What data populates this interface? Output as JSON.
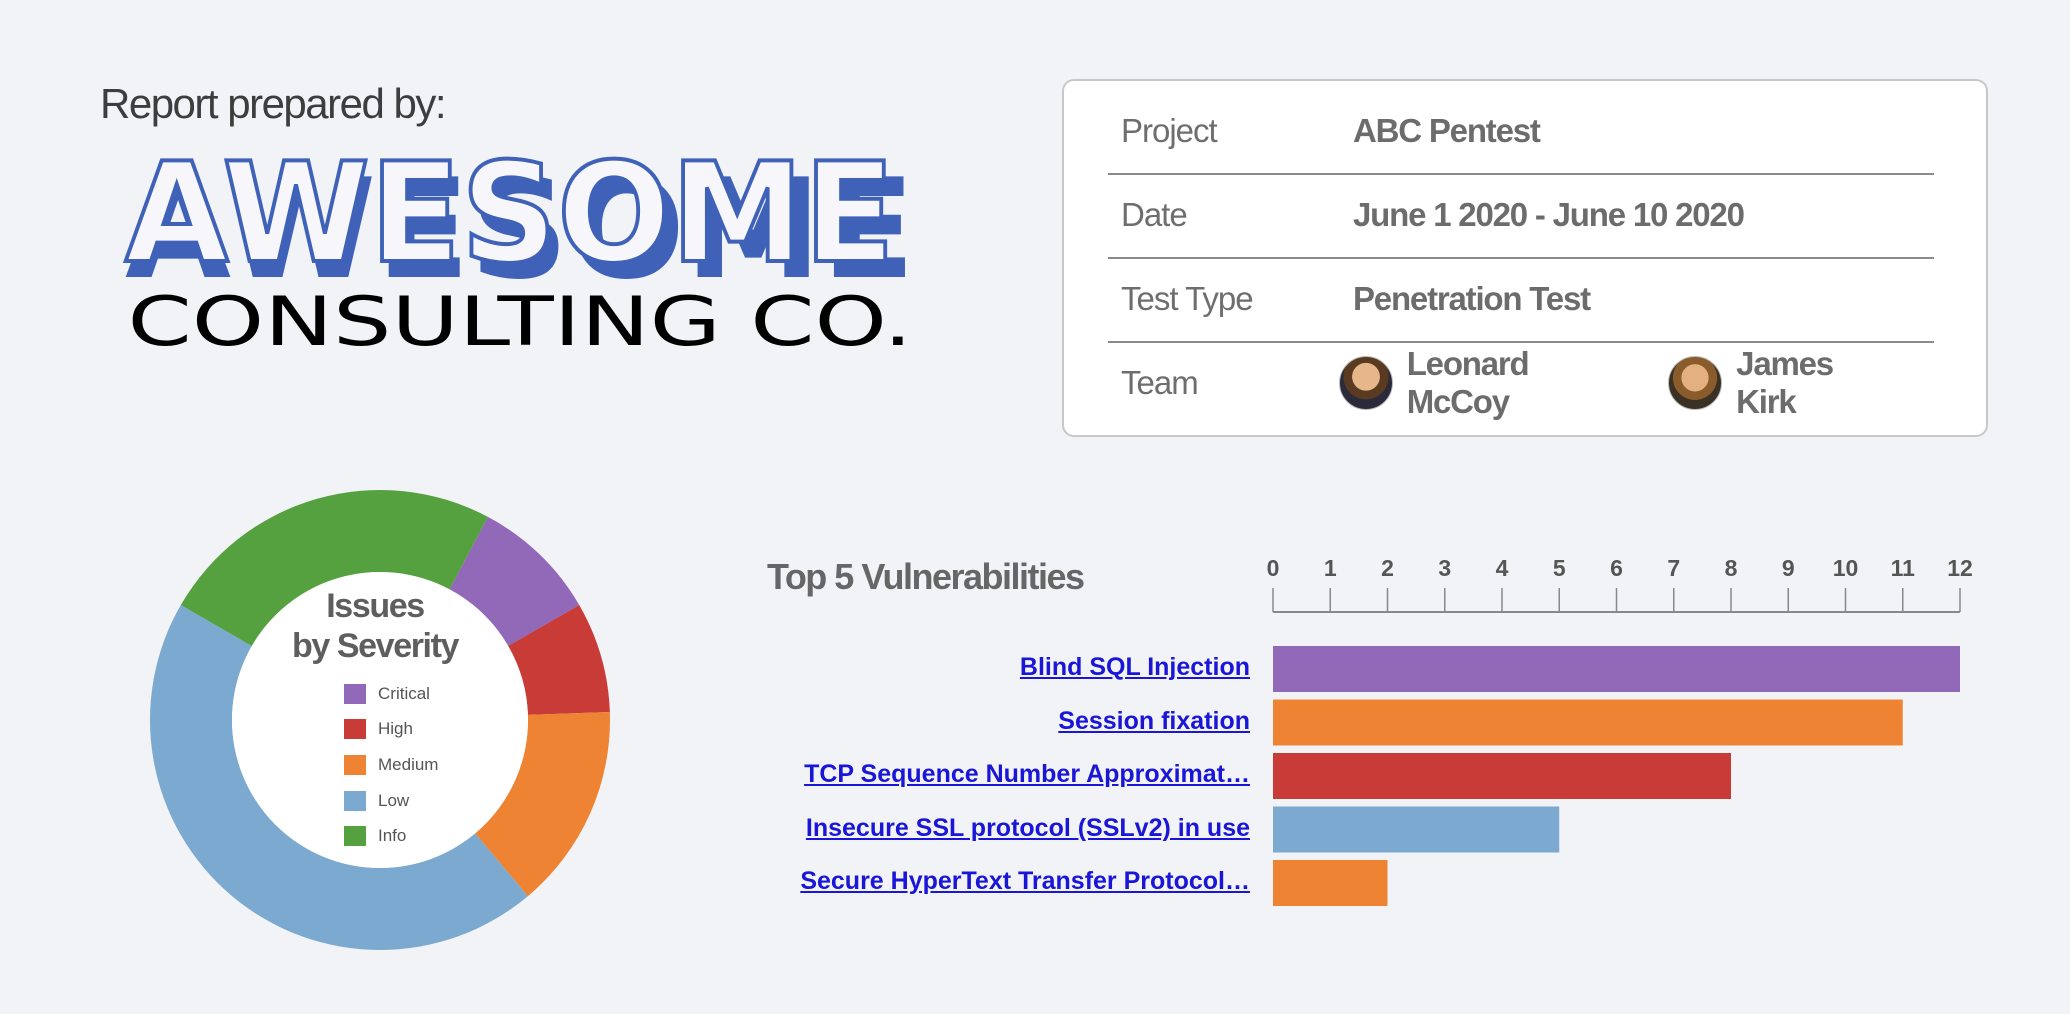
{
  "header": {
    "prepared_by": "Report prepared by:"
  },
  "logo": {
    "line1": "AWESOME",
    "line2": "CONSULTING CO.",
    "color": "#3f62b8"
  },
  "info": {
    "rows": [
      {
        "label": "Project",
        "value": "ABC Pentest"
      },
      {
        "label": "Date",
        "value": "June 1 2020 - June 10 2020"
      },
      {
        "label": "Test Type",
        "value": "Penetration Test"
      },
      {
        "label": "Team",
        "members": [
          {
            "name": "Leonard McCoy"
          },
          {
            "name": "James Kirk"
          }
        ]
      }
    ]
  },
  "chart_data": [
    {
      "type": "pie",
      "title": "Issues by Severity",
      "title_lines": [
        "Issues",
        "by Severity"
      ],
      "legend": [
        {
          "label": "Critical",
          "color": "#9268b8"
        },
        {
          "label": "High",
          "color": "#c83b36"
        },
        {
          "label": "Medium",
          "color": "#ee8433"
        },
        {
          "label": "Low",
          "color": "#7ba9d0"
        },
        {
          "label": "Info",
          "color": "#55a13f"
        }
      ],
      "slices": [
        {
          "label": "Critical",
          "value": 8
        },
        {
          "label": "High",
          "value": 7
        },
        {
          "label": "Medium",
          "value": 13
        },
        {
          "label": "Low",
          "value": 40
        },
        {
          "label": "Info",
          "value": 22
        }
      ]
    },
    {
      "type": "bar",
      "orientation": "horizontal",
      "title": "Top 5 Vulnerabilities",
      "categories": [
        "Blind SQL Injection",
        "Session fixation",
        "TCP Sequence Number Approximat…",
        "Insecure SSL protocol (SSLv2) in use",
        "Secure HyperText Transfer Protocol…"
      ],
      "values": [
        12,
        11,
        8,
        5,
        2
      ],
      "colors": [
        "#9268b8",
        "#ee8433",
        "#c83b36",
        "#7ba9d0",
        "#ee8433"
      ],
      "xlim": [
        0,
        12
      ],
      "xticks": [
        0,
        1,
        2,
        3,
        4,
        5,
        6,
        7,
        8,
        9,
        10,
        11,
        12
      ],
      "axis_position": "top",
      "link_color": "#1a16d8"
    }
  ]
}
